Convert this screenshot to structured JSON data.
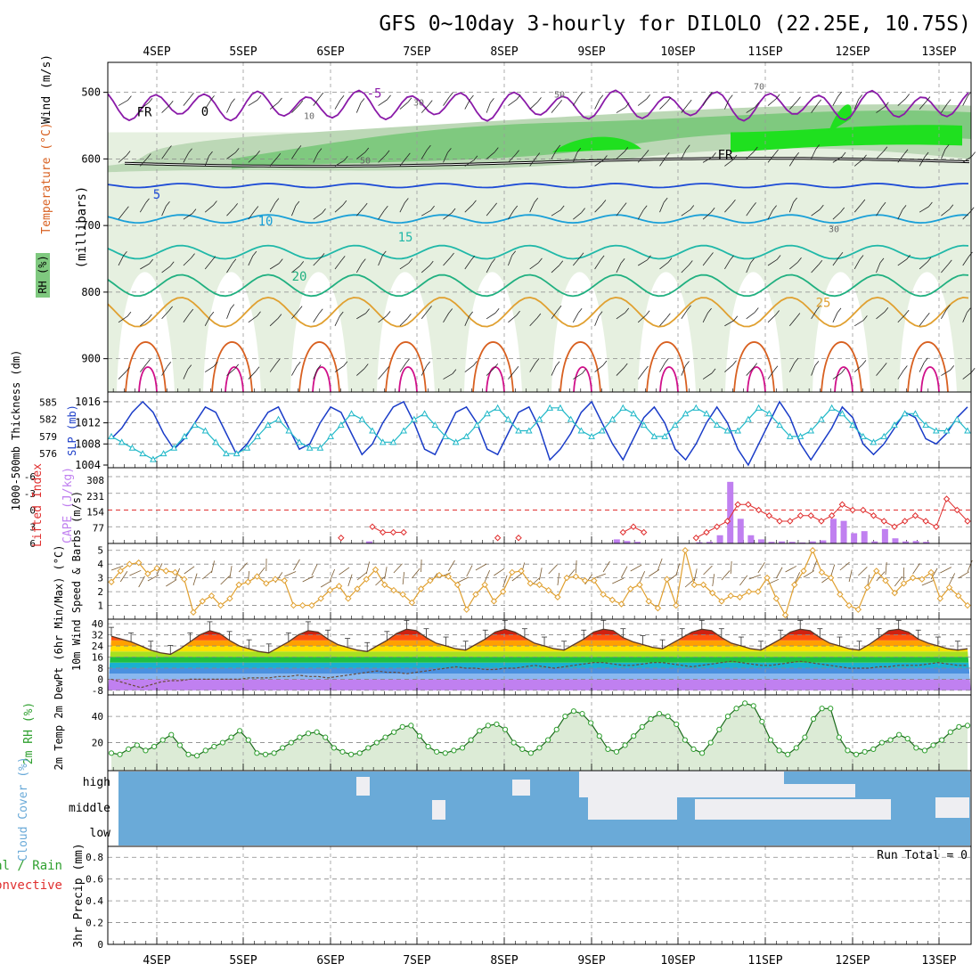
{
  "title": "GFS 0~10day 3-hourly for DILOLO (22.25E, 10.75S)",
  "date_labels": [
    "4SEP",
    "5SEP",
    "6SEP",
    "7SEP",
    "8SEP",
    "9SEP",
    "10SEP",
    "11SEP",
    "12SEP",
    "13SEP"
  ],
  "colors": {
    "rh_light": "#e6f0e0",
    "rh_mid": "#bcd8b6",
    "rh_dark": "#7fc97f",
    "rh_bright": "#1fe01f",
    "temp_neg": "#8a1aa8",
    "temp_5": "#1d4bd6",
    "temp_10": "#1aa0d8",
    "temp_15": "#20b8a8",
    "temp_20": "#20b080",
    "temp_25": "#e0a030",
    "temp_30": "#d86020",
    "temp_35": "#d0108a",
    "slp": "#1a3cc8",
    "thickness": "#20b8c8",
    "lifted": "#e03030",
    "cape": "#c080f0",
    "wind": "#e0a030",
    "cloud": "#6aaad8",
    "cloud_gap": "#eeeef2",
    "rh2m": "#2fa02f"
  },
  "chart_data": [
    {
      "type": "heatmap",
      "name": "upper-air",
      "ylabel": "(millibars)",
      "side_labels": {
        "wind": "Wind (m/s)",
        "temperature": "Temperature (°C)",
        "rh": "RH (%)"
      },
      "yticks": [
        500,
        600,
        700,
        800,
        900
      ],
      "ylim": [
        455,
        950
      ],
      "contour_labels": [
        "-5",
        "0",
        "5",
        "10",
        "15",
        "20",
        "25",
        "FR",
        "FR"
      ],
      "rh_labels": [
        "10",
        "30",
        "50",
        "50",
        "30",
        "70"
      ],
      "freezing_level_mb": 605,
      "isotherms_mb": {
        "minus5": 520,
        "5": 640,
        "10": 690,
        "15": 740,
        "20": 790,
        "25": 830
      }
    },
    {
      "type": "line",
      "name": "slp-thickness",
      "ylabel_left": "1000-500mb Thickness (dm)",
      "ylabel_right": "SLP (mb)",
      "yticks_left": [
        "585",
        "582",
        "579",
        "576"
      ],
      "yticks_right": [
        "1016",
        "1012",
        "1008",
        "1004"
      ],
      "series": [
        {
          "name": "SLP (mb)",
          "values": [
            1009,
            1011,
            1014,
            1016,
            1014,
            1010,
            1007,
            1009,
            1012,
            1015,
            1014,
            1010,
            1006,
            1008,
            1011,
            1014,
            1015,
            1011,
            1007,
            1008,
            1012,
            1015,
            1014,
            1010,
            1006,
            1008,
            1012,
            1015,
            1016,
            1012,
            1007,
            1006,
            1010,
            1014,
            1015,
            1012,
            1007,
            1006,
            1010,
            1014,
            1015,
            1011,
            1005,
            1007,
            1010,
            1014,
            1016,
            1012,
            1008,
            1005,
            1009,
            1013,
            1015,
            1012,
            1007,
            1005,
            1008,
            1012,
            1015,
            1012,
            1007,
            1004,
            1008,
            1012,
            1016,
            1013,
            1008,
            1005,
            1008,
            1011,
            1015,
            1013,
            1008,
            1006,
            1008,
            1011,
            1014,
            1013,
            1009,
            1008,
            1010,
            1013,
            1015
          ]
        },
        {
          "name": "Thickness (dm)",
          "values": [
            579,
            578,
            577,
            576,
            575,
            576,
            577,
            579,
            581,
            580,
            578,
            576,
            576,
            577,
            579,
            581,
            582,
            580,
            578,
            577,
            577,
            579,
            581,
            583,
            582,
            580,
            578,
            578,
            580,
            582,
            583,
            581,
            579,
            578,
            579,
            581,
            583,
            584,
            582,
            580,
            580,
            582,
            584,
            584,
            582,
            580,
            579,
            580,
            582,
            584,
            583,
            581,
            579,
            579,
            581,
            583,
            584,
            583,
            581,
            580,
            580,
            582,
            584,
            583,
            581,
            579,
            579,
            580,
            582,
            584,
            583,
            581,
            579,
            578,
            579,
            581,
            583,
            583,
            581,
            580,
            580,
            582,
            580
          ]
        }
      ]
    },
    {
      "type": "bar",
      "name": "lifted-cape",
      "ylabel_left": "Lifted Index",
      "ylabel_right": "CAPE (J/kg)",
      "yticks_left": [
        "-6",
        "-3",
        "0",
        "3",
        "6"
      ],
      "yticks_right": [
        "308",
        "231",
        "154",
        "77"
      ],
      "cape_values": [
        0,
        0,
        0,
        0,
        0,
        0,
        0,
        0,
        0,
        0,
        0,
        0,
        0,
        0,
        0,
        0,
        0,
        0,
        0,
        0,
        0,
        0,
        0,
        0,
        0,
        10,
        0,
        0,
        0,
        0,
        0,
        0,
        0,
        0,
        0,
        0,
        0,
        0,
        0,
        0,
        0,
        0,
        0,
        0,
        0,
        0,
        0,
        0,
        0,
        20,
        12,
        8,
        0,
        0,
        0,
        0,
        0,
        6,
        8,
        40,
        300,
        120,
        40,
        20,
        8,
        10,
        8,
        5,
        10,
        15,
        120,
        110,
        50,
        60,
        10,
        70,
        25,
        10,
        12,
        8,
        0,
        0,
        0,
        0
      ],
      "lifted_index": [
        6,
        6,
        6,
        6,
        6,
        6,
        6,
        6,
        6,
        6,
        6,
        6,
        6,
        6,
        6,
        6,
        6,
        6,
        6,
        6,
        6,
        6,
        5,
        6,
        6,
        3,
        4,
        4,
        4,
        6,
        6,
        6,
        6,
        6,
        6,
        6,
        6,
        5,
        6,
        5,
        6,
        6,
        6,
        6,
        6,
        6,
        6,
        6,
        6,
        4,
        3,
        4,
        6,
        6,
        6,
        6,
        5,
        4,
        3,
        2,
        -1,
        -1,
        0,
        1,
        2,
        2,
        1,
        1,
        2,
        1,
        -1,
        0,
        0,
        1,
        2,
        3,
        2,
        1,
        2,
        3,
        -2,
        0,
        2
      ]
    },
    {
      "type": "line",
      "name": "wind-10m",
      "ylabel": "10m Wind Speed & Barbs (m/s)",
      "yticks": [
        "5",
        "4",
        "3",
        "2",
        "1"
      ],
      "ylim": [
        0,
        5.5
      ],
      "values": [
        2.7,
        3.5,
        4.0,
        4.1,
        3.3,
        3.7,
        3.5,
        3.4,
        2.9,
        0.5,
        1.3,
        1.7,
        1.0,
        1.5,
        2.5,
        2.7,
        3.1,
        2.6,
        2.9,
        2.8,
        1.0,
        1.0,
        1.0,
        1.5,
        2.1,
        2.4,
        1.5,
        2.2,
        2.9,
        3.6,
        2.5,
        2.1,
        1.8,
        1.2,
        2.2,
        2.8,
        3.2,
        3.1,
        2.5,
        0.7,
        1.8,
        2.5,
        1.3,
        2.0,
        3.4,
        3.5,
        2.6,
        2.5,
        2.1,
        1.6,
        3.0,
        3.1,
        2.8,
        2.8,
        1.8,
        1.4,
        1.1,
        2.2,
        2.5,
        1.3,
        0.8,
        2.9,
        1.0,
        5.0,
        2.5,
        2.5,
        1.9,
        1.3,
        1.7,
        1.6,
        2.0,
        2.0,
        3.0,
        1.5,
        0.3,
        2.5,
        3.5,
        5.0,
        3.4,
        3.0,
        1.8,
        1.0,
        0.7,
        2.3,
        3.5,
        2.8,
        1.9,
        2.6,
        3.0,
        2.9,
        3.4,
        1.5,
        2.3,
        1.7,
        1.0
      ]
    },
    {
      "type": "area",
      "name": "temp-2m",
      "ylabel": "2m Temp 2m DewPt (6hr Min/Max) (°C)",
      "yticks": [
        "40",
        "32",
        "24",
        "16",
        "8",
        "0",
        "-8"
      ],
      "ylim": [
        -10,
        42
      ],
      "temperature": [
        31,
        29,
        27,
        24,
        21,
        19,
        18,
        22,
        27,
        32,
        35,
        33,
        28,
        24,
        22,
        20,
        19,
        23,
        27,
        32,
        35,
        34,
        29,
        25,
        23,
        21,
        20,
        24,
        28,
        33,
        36,
        35,
        30,
        26,
        24,
        22,
        21,
        25,
        29,
        34,
        36,
        34,
        30,
        26,
        24,
        22,
        21,
        25,
        29,
        34,
        36,
        35,
        30,
        27,
        25,
        23,
        22,
        26,
        30,
        34,
        36,
        35,
        30,
        26,
        24,
        22,
        21,
        25,
        29,
        34,
        36,
        35,
        30,
        26,
        24,
        22,
        21,
        25,
        30,
        35,
        36,
        34,
        29,
        26,
        24,
        22,
        21,
        22
      ],
      "dewpoint": [
        0,
        -2,
        -4,
        -6,
        -4,
        -2,
        -1,
        -1,
        0,
        0,
        0,
        0,
        0,
        0,
        1,
        1,
        1,
        2,
        2,
        3,
        2,
        2,
        1,
        2,
        3,
        4,
        5,
        6,
        5,
        5,
        4,
        5,
        6,
        7,
        8,
        9,
        8,
        8,
        7,
        7,
        8,
        8,
        9,
        10,
        9,
        8,
        9,
        10,
        11,
        12,
        12,
        11,
        10,
        10,
        11,
        12,
        12,
        11,
        10,
        9,
        10,
        11,
        12,
        13,
        12,
        11,
        10,
        10,
        11,
        12,
        13,
        12,
        11,
        10,
        9,
        8,
        8,
        8,
        9,
        9,
        10,
        10,
        10,
        11,
        12,
        11,
        10,
        10
      ]
    },
    {
      "type": "area",
      "name": "rh-2m",
      "ylabel": "2m RH (%)",
      "yticks": [
        "40",
        "20"
      ],
      "ylim": [
        0,
        55
      ],
      "values": [
        12,
        11,
        15,
        18,
        14,
        17,
        22,
        26,
        18,
        11,
        10,
        14,
        17,
        20,
        24,
        29,
        22,
        12,
        11,
        12,
        16,
        20,
        24,
        27,
        28,
        24,
        16,
        13,
        11,
        12,
        16,
        20,
        24,
        28,
        32,
        33,
        25,
        17,
        13,
        12,
        14,
        16,
        22,
        29,
        33,
        34,
        30,
        20,
        15,
        12,
        16,
        22,
        30,
        40,
        44,
        42,
        35,
        25,
        15,
        13,
        18,
        25,
        32,
        38,
        42,
        40,
        34,
        22,
        15,
        12,
        20,
        30,
        40,
        46,
        50,
        48,
        36,
        22,
        14,
        11,
        16,
        24,
        38,
        46,
        46,
        24,
        14,
        11,
        13,
        15,
        20,
        22,
        26,
        23,
        16,
        14,
        18,
        22,
        28,
        32,
        33
      ]
    },
    {
      "type": "heatmap",
      "name": "cloud-cover",
      "ylabel": "Cloud Cover (%)",
      "levels": [
        "high",
        "middle",
        "low"
      ]
    },
    {
      "type": "bar",
      "name": "precip",
      "ylabel": "3hr Precip (mm)",
      "side_label_total": "Total / Rain",
      "side_label_convective": "Convective",
      "run_total": "Run Total = 0",
      "yticks": [
        "0.8",
        "0.6",
        "0.4",
        "0.2",
        "0"
      ],
      "ylim": [
        0,
        0.9
      ],
      "values": []
    }
  ]
}
